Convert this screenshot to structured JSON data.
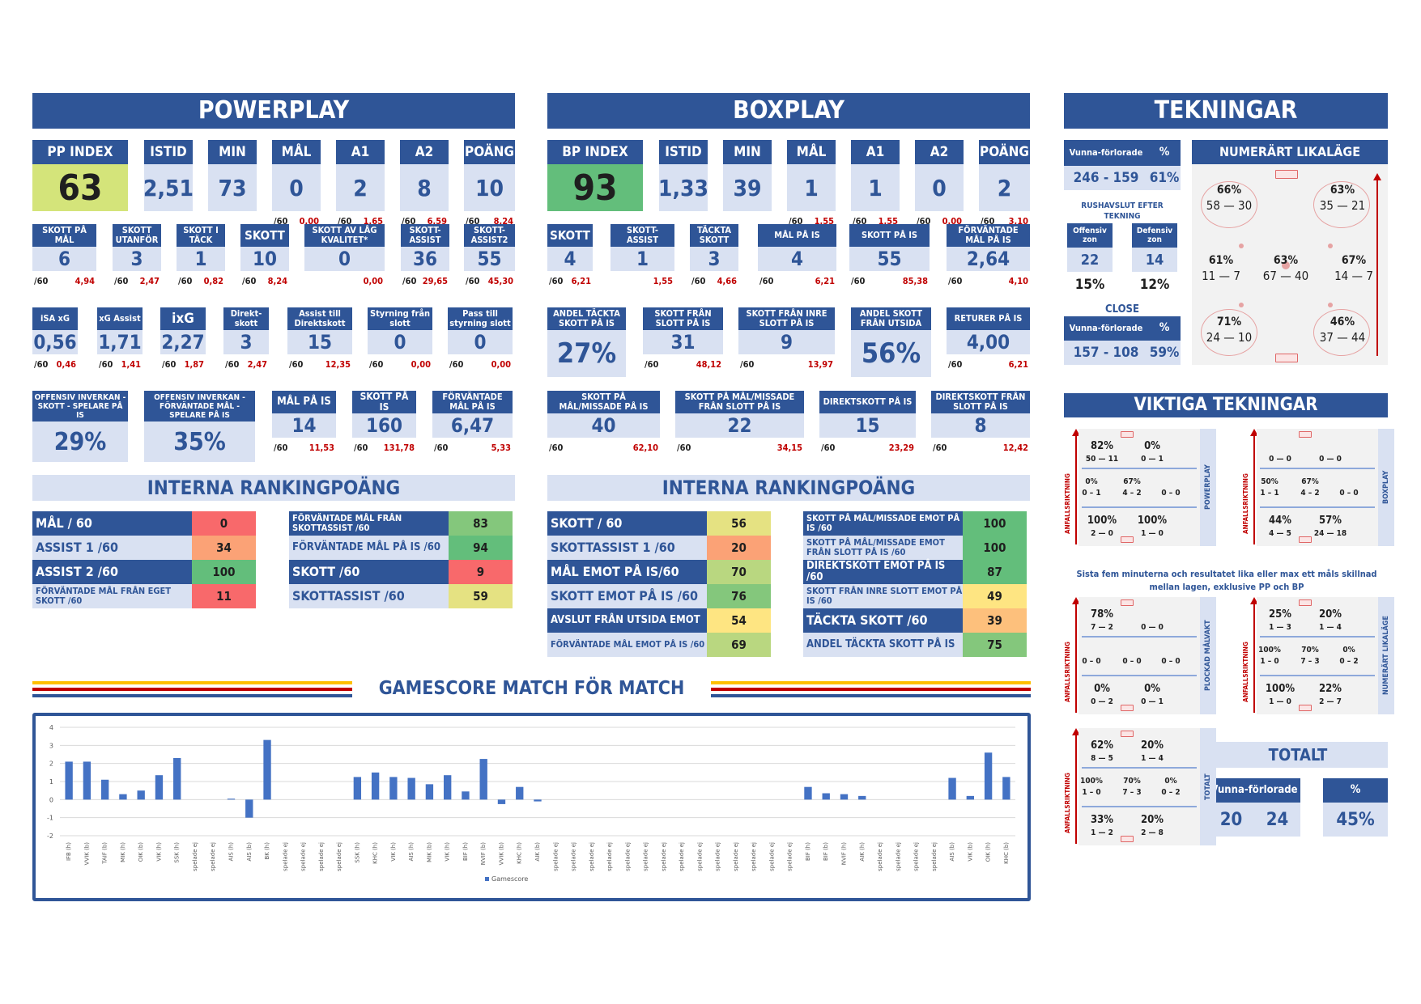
{
  "powerplay": {
    "title": "POWERPLAY",
    "row1": [
      {
        "label": "PP INDEX",
        "value": "63"
      },
      {
        "label": "ISTID",
        "value": "2,51"
      },
      {
        "label": "MIN",
        "value": "73"
      },
      {
        "label": "MÅL",
        "value": "0",
        "per": "/60",
        "rate": "0,00"
      },
      {
        "label": "A1",
        "value": "2",
        "per": "/60",
        "rate": "1,65"
      },
      {
        "label": "A2",
        "value": "8",
        "per": "/60",
        "rate": "6,59"
      },
      {
        "label": "POÄNG",
        "value": "10",
        "per": "/60",
        "rate": "8,24"
      }
    ],
    "row2": [
      {
        "label": "SKOTT PÅ MÅL",
        "value": "6",
        "per": "/60",
        "rate": "4,94"
      },
      {
        "label": "SKOTT UTANFÖR",
        "value": "3",
        "per": "/60",
        "rate": "2,47"
      },
      {
        "label": "SKOTT I TÄCK",
        "value": "1",
        "per": "/60",
        "rate": "0,82"
      },
      {
        "label": "SKOTT",
        "value": "10",
        "per": "/60",
        "rate": "8,24"
      },
      {
        "label": "SKOTT AV LÅG KVALITET*",
        "value": "0",
        "rate": "0,00"
      },
      {
        "label": "SKOTT-ASSIST",
        "value": "36",
        "per": "/60",
        "rate": "29,65"
      },
      {
        "label": "SKOTT-ASSIST2",
        "value": "55",
        "per": "/60",
        "rate": "45,30"
      }
    ],
    "row3": [
      {
        "label": "iSA xG",
        "value": "0,56",
        "per": "/60",
        "rate": "0,46"
      },
      {
        "label": "xG Assist",
        "value": "1,71",
        "per": "/60",
        "rate": "1,41"
      },
      {
        "label": "ixG",
        "value": "2,27",
        "per": "/60",
        "rate": "1,87"
      },
      {
        "label": "Direkt-skott",
        "value": "3",
        "per": "/60",
        "rate": "2,47"
      },
      {
        "label": "Assist till Direktskott",
        "value": "15",
        "per": "/60",
        "rate": "12,35"
      },
      {
        "label": "Styrning från slott",
        "value": "0",
        "per": "/60",
        "rate": "0,00"
      },
      {
        "label": "Pass till styrning slott",
        "value": "0",
        "per": "/60",
        "rate": "0,00"
      }
    ],
    "row4": [
      {
        "label": "OFFENSIV INVERKAN - SKOTT - SPELARE PÅ IS",
        "value": "29%"
      },
      {
        "label": "OFFENSIV INVERKAN - FÖRVÄNTADE MÅL - SPELARE PÅ IS",
        "value": "35%"
      },
      {
        "label": "MÅL PÅ IS",
        "value": "14",
        "per": "/60",
        "rate": "11,53"
      },
      {
        "label": "SKOTT PÅ IS",
        "value": "160",
        "per": "/60",
        "rate": "131,78"
      },
      {
        "label": "FÖRVÄNTADE MÅL PÅ IS",
        "value": "6,47",
        "per": "/60",
        "rate": "5,33"
      }
    ],
    "ranking_title": "INTERNA RANKINGPOÄNG",
    "ranking_left": [
      {
        "label": "MÅL / 60",
        "value": "0"
      },
      {
        "label": "ASSIST 1 /60",
        "value": "34"
      },
      {
        "label": "ASSIST 2 /60",
        "value": "100"
      },
      {
        "label": "FÖRVÄNTADE MÅL FRÅN EGET SKOTT /60",
        "value": "11"
      }
    ],
    "ranking_right": [
      {
        "label": "FÖRVÄNTADE MÅL FRÅN SKOTTASSIST /60",
        "value": "83"
      },
      {
        "label": "FÖRVÄNTADE MÅL PÅ IS /60",
        "value": "94"
      },
      {
        "label": "SKOTT /60",
        "value": "9"
      },
      {
        "label": "SKOTTASSIST /60",
        "value": "59"
      }
    ]
  },
  "boxplay": {
    "title": "BOXPLAY",
    "row1": [
      {
        "label": "BP INDEX",
        "value": "93"
      },
      {
        "label": "ISTID",
        "value": "1,33"
      },
      {
        "label": "MIN",
        "value": "39"
      },
      {
        "label": "MÅL",
        "value": "1",
        "per": "/60",
        "rate": "1,55"
      },
      {
        "label": "A1",
        "value": "1",
        "per": "/60",
        "rate": "1,55"
      },
      {
        "label": "A2",
        "value": "0",
        "per": "/60",
        "rate": "0,00"
      },
      {
        "label": "POÄNG",
        "value": "2",
        "per": "/60",
        "rate": "3,10"
      }
    ],
    "row2": [
      {
        "label": "SKOTT",
        "value": "4",
        "per": "/60",
        "rate": "6,21"
      },
      {
        "label": "SKOTT-ASSIST",
        "value": "1",
        "rate": "1,55"
      },
      {
        "label": "TÄCKTA SKOTT",
        "value": "3",
        "per": "/60",
        "rate": "4,66"
      },
      {
        "label": "MÅL PÅ IS",
        "value": "4",
        "per": "/60",
        "rate": "6,21"
      },
      {
        "label": "SKOTT PÅ IS",
        "value": "55",
        "per": "/60",
        "rate": "85,38"
      },
      {
        "label": "FÖRVÄNTADE MÅL PÅ IS",
        "value": "2,64",
        "per": "/60",
        "rate": "4,10"
      }
    ],
    "row3": [
      {
        "label": "ANDEL TÄCKTA SKOTT PÅ IS",
        "value": "27%"
      },
      {
        "label": "SKOTT FRÅN SLOTT PÅ IS",
        "value": "31",
        "per": "/60",
        "rate": "48,12"
      },
      {
        "label": "SKOTT FRÅN INRE SLOTT PÅ IS",
        "value": "9",
        "per": "/60",
        "rate": "13,97"
      },
      {
        "label": "ANDEL SKOTT FRÅN UTSIDA",
        "value": "56%"
      },
      {
        "label": "RETURER PÅ IS",
        "value": "4,00",
        "per": "/60",
        "rate": "6,21"
      }
    ],
    "row4": [
      {
        "label": "SKOTT PÅ MÅL/MISSADE PÅ IS",
        "value": "40",
        "per": "/60",
        "rate": "62,10"
      },
      {
        "label": "SKOTT PÅ MÅL/MISSADE FRÅN SLOTT PÅ IS",
        "value": "22",
        "per": "/60",
        "rate": "34,15"
      },
      {
        "label": "DIREKTSKOTT PÅ IS",
        "value": "15",
        "per": "/60",
        "rate": "23,29"
      },
      {
        "label": "DIREKTSKOTT FRÅN SLOTT PÅ IS",
        "value": "8",
        "per": "/60",
        "rate": "12,42"
      }
    ],
    "ranking_title": "INTERNA RANKINGPOÄNG",
    "ranking_left": [
      {
        "label": "SKOTT / 60",
        "value": "56"
      },
      {
        "label": "SKOTTASSIST 1 /60",
        "value": "20"
      },
      {
        "label": "MÅL EMOT PÅ IS/60",
        "value": "70"
      },
      {
        "label": "SKOTT EMOT PÅ IS /60",
        "value": "76"
      },
      {
        "label": "AVSLUT FRÅN UTSIDA EMOT",
        "value": "54"
      },
      {
        "label": "FÖRVÄNTADE MÅL EMOT PÅ IS /60",
        "value": "69"
      }
    ],
    "ranking_right": [
      {
        "label": "SKOTT PÅ MÅL/MISSADE EMOT PÅ IS /60",
        "value": "100"
      },
      {
        "label": "SKOTT PÅ MÅL/MISSADE EMOT FRÅN SLOTT PÅ IS /60",
        "value": "100"
      },
      {
        "label": "DIREKTSKOTT EMOT PÅ IS /60",
        "value": "87"
      },
      {
        "label": "SKOTT FRÅN INRE SLOTT EMOT PÅ IS /60",
        "value": "49"
      },
      {
        "label": "TÄCKTA SKOTT /60",
        "value": "39"
      },
      {
        "label": "ANDEL TÄCKTA SKOTT PÅ IS",
        "value": "75"
      }
    ]
  },
  "tekningar": {
    "title": "TEKNINGAR",
    "won_lost_label": "Vunna-förlorade",
    "pct_label": "%",
    "total": {
      "score": "246 - 159",
      "pct": "61%"
    },
    "rush_title": "RUSHAVSLUT EFTER TEKNING",
    "offensiv_label": "Offensiv zon",
    "defensiv_label": "Defensiv zon",
    "offensiv": {
      "value": "22",
      "pct": "15%"
    },
    "defensiv": {
      "value": "14",
      "pct": "12%"
    },
    "close_title": "CLOSE",
    "close": {
      "score": "157 - 108",
      "pct": "59%"
    },
    "rink_title": "NUMERÄRT LIKALÄGE",
    "rink_spots": [
      {
        "pct": "66%",
        "score": "58 — 30"
      },
      {
        "pct": "63%",
        "score": "35 — 21"
      },
      {
        "pct": "61%",
        "score": "11 — 7"
      },
      {
        "pct": "63%",
        "score": "67 — 40"
      },
      {
        "pct": "67%",
        "score": "14 — 7"
      },
      {
        "pct": "71%",
        "score": "24 — 10"
      },
      {
        "pct": "46%",
        "score": "37 — 44"
      }
    ]
  },
  "viktiga": {
    "title": "VIKTIGA TEKNINGAR",
    "direction_label": "ANFALLSRIKTNING",
    "note": "Sista fem minuterna och resultatet lika eller max ett måls skillnad mellan lagen, exklusive PP och BP",
    "panels": [
      {
        "side": "POWERPLAY",
        "top": [
          {
            "p": "82%",
            "s": "50 — 11"
          },
          {
            "p": "0%",
            "s": "0 — 1"
          }
        ],
        "mid": [
          {
            "p": "0%",
            "s": "0 – 1"
          },
          {
            "p": "67%",
            "s": "4 – 2"
          },
          {
            "p": "",
            "s": "0 – 0"
          }
        ],
        "bot": [
          {
            "p": "100%",
            "s": "2 — 0"
          },
          {
            "p": "100%",
            "s": "1 — 0"
          }
        ]
      },
      {
        "side": "BOXPLAY",
        "top": [
          {
            "p": "",
            "s": "0 — 0"
          },
          {
            "p": "",
            "s": "0 — 0"
          }
        ],
        "mid": [
          {
            "p": "50%",
            "s": "1 – 1"
          },
          {
            "p": "67%",
            "s": "4 – 2"
          },
          {
            "p": "",
            "s": "0 – 0"
          }
        ],
        "bot": [
          {
            "p": "44%",
            "s": "4 — 5"
          },
          {
            "p": "57%",
            "s": "24 — 18"
          }
        ]
      },
      {
        "side": "PLOCKAD MÅLVAKT",
        "top": [
          {
            "p": "78%",
            "s": "7 — 2"
          },
          {
            "p": "",
            "s": "0 — 0"
          }
        ],
        "mid": [
          {
            "p": "",
            "s": "0 – 0"
          },
          {
            "p": "",
            "s": "0 – 0"
          },
          {
            "p": "",
            "s": "0 – 0"
          }
        ],
        "bot": [
          {
            "p": "0%",
            "s": "0 — 2"
          },
          {
            "p": "0%",
            "s": "0 — 1"
          }
        ]
      },
      {
        "side": "NUMERÄRT LIKALÄGE",
        "top": [
          {
            "p": "25%",
            "s": "1 — 3"
          },
          {
            "p": "20%",
            "s": "1 — 4"
          }
        ],
        "mid": [
          {
            "p": "100%",
            "s": "1 – 0"
          },
          {
            "p": "70%",
            "s": "7 – 3"
          },
          {
            "p": "0%",
            "s": "0 – 2"
          }
        ],
        "bot": [
          {
            "p": "100%",
            "s": "1 — 0"
          },
          {
            "p": "22%",
            "s": "2 — 7"
          }
        ]
      },
      {
        "side": "TOTALT",
        "top": [
          {
            "p": "62%",
            "s": "8 — 5"
          },
          {
            "p": "20%",
            "s": "1 — 4"
          }
        ],
        "mid": [
          {
            "p": "100%",
            "s": "1 – 0"
          },
          {
            "p": "70%",
            "s": "7 – 3"
          },
          {
            "p": "0%",
            "s": "0 – 2"
          }
        ],
        "bot": [
          {
            "p": "33%",
            "s": "1 — 2"
          },
          {
            "p": "20%",
            "s": "2 — 8"
          }
        ]
      }
    ],
    "totalt": {
      "title": "TOTALT",
      "won_lost_label": "Vunna-förlorade",
      "pct_label": "%",
      "won": "20",
      "lost": "24",
      "pct": "45%"
    }
  },
  "gamescore": {
    "title": "GAMESCORE MATCH FÖR MATCH",
    "colors": {
      "bar": "#4472c4",
      "gold": "#ffc000",
      "red": "#c00000",
      "navy": "#2f5597"
    }
  },
  "chart_data": {
    "type": "bar",
    "categories": [
      "IFB (h)",
      "VVIK (b)",
      "TAIF (b)",
      "MIK (h)",
      "OIK (b)",
      "VIK (h)",
      "SSK (h)",
      "spelade ej",
      "spelade ej",
      "AIS (h)",
      "AIS (b)",
      "BK (h)",
      "spelade ej",
      "spelade ej",
      "spelade ej",
      "spelade ej",
      "SSK (h)",
      "KHC (h)",
      "VIK (h)",
      "AIS (h)",
      "MIK (b)",
      "VIK (h)",
      "BIF (h)",
      "NVIF (b)",
      "VVIK (b)",
      "KHC (h)",
      "AIK (b)",
      "spelade ej",
      "spelade ej",
      "spelade ej",
      "spelade ej",
      "spelade ej",
      "spelade ej",
      "spelade ej",
      "spelade ej",
      "spelade ej",
      "spelade ej",
      "spelade ej",
      "spelade ej",
      "spelade ej",
      "spelade ej",
      "BIF (h)",
      "BIF (b)",
      "NVIF (h)",
      "AIK (h)",
      "spelade ej",
      "spelade ej",
      "spelade ej",
      "spelade ej",
      "AIS (b)",
      "VIK (b)",
      "OIK (h)",
      "KHC (b)"
    ],
    "values": [
      2.1,
      2.1,
      1.1,
      0.3,
      0.5,
      1.35,
      2.3,
      0,
      0,
      0.05,
      -1.0,
      3.3,
      0,
      0,
      0,
      0,
      1.25,
      1.5,
      1.25,
      1.2,
      0.85,
      1.35,
      0.45,
      2.25,
      -0.25,
      0.7,
      -0.1,
      0,
      0,
      0,
      0,
      0,
      0,
      0,
      0,
      0,
      0,
      0,
      0,
      0,
      0,
      0.7,
      0.35,
      0.3,
      0.2,
      0,
      0,
      0,
      0,
      1.2,
      0.2,
      2.6,
      1.25
    ],
    "ylim": [
      -2,
      4
    ],
    "yticks": [
      "4",
      "3",
      "2",
      "1",
      "0",
      "-1",
      "-2"
    ],
    "legend": "Gamescore",
    "grid": true,
    "legend_position": "bottom"
  }
}
